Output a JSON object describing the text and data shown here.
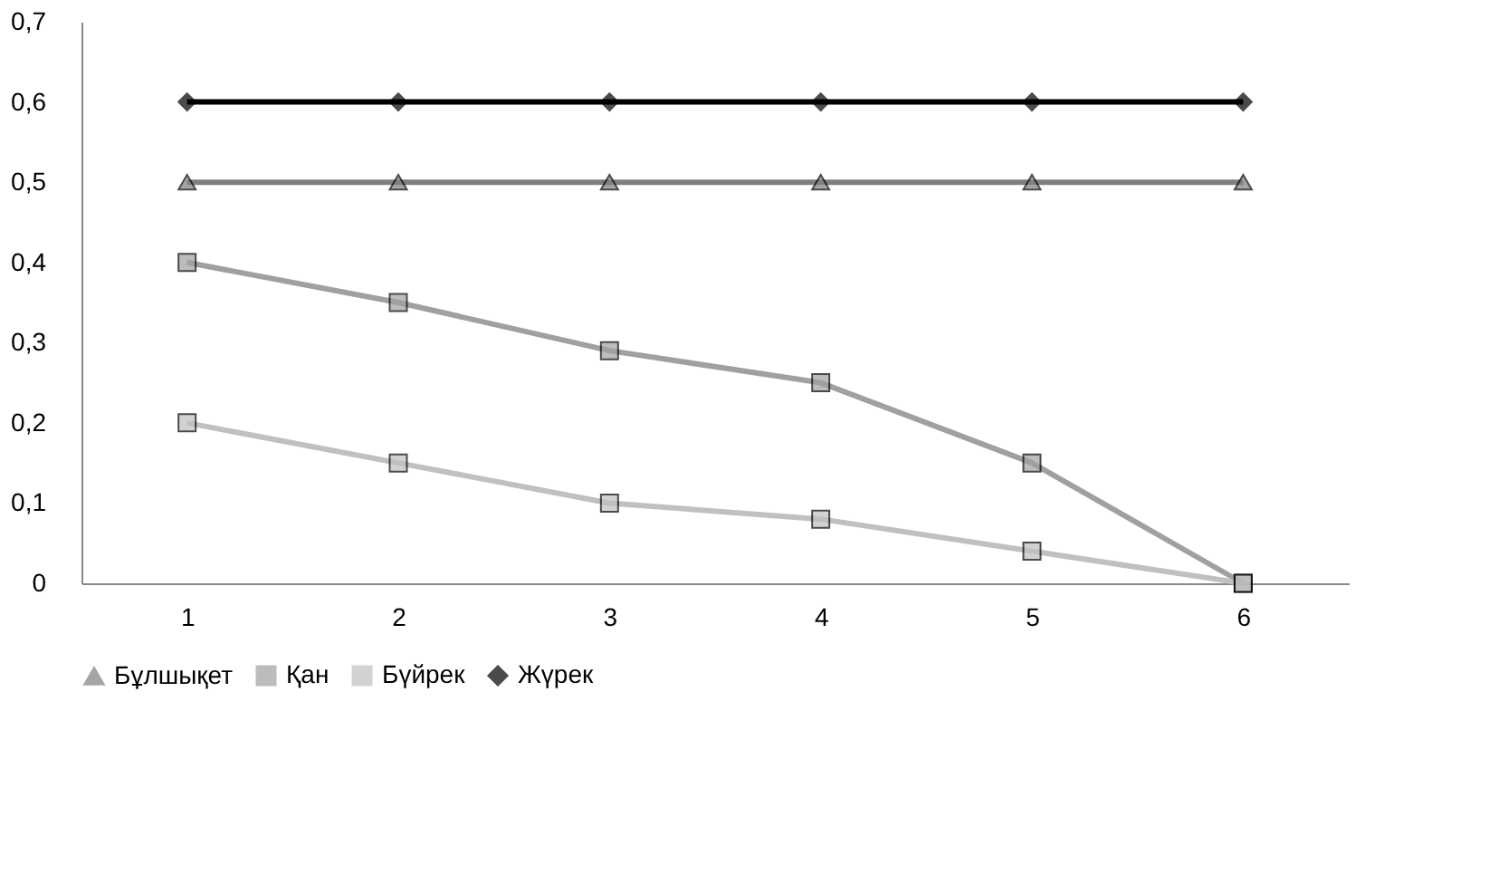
{
  "chart_data": {
    "type": "line",
    "categories": [
      "1",
      "2",
      "3",
      "4",
      "5",
      "6"
    ],
    "series": [
      {
        "name": "Бұлшықет",
        "color": "#808080",
        "marker": "triangle",
        "values": [
          0.5,
          0.5,
          0.5,
          0.5,
          0.5,
          0.5
        ]
      },
      {
        "name": "Қан",
        "color": "#a0a0a0",
        "marker": "square",
        "values": [
          0.4,
          0.35,
          0.29,
          0.25,
          0.15,
          0
        ]
      },
      {
        "name": "Бүйрек",
        "color": "#c0c0c0",
        "marker": "square",
        "values": [
          0.2,
          0.15,
          0.1,
          0.08,
          0.04,
          0
        ]
      },
      {
        "name": "Жүрек",
        "color": "#000000",
        "marker": "diamond",
        "values": [
          0.6,
          0.6,
          0.6,
          0.6,
          0.6,
          0.6
        ]
      }
    ],
    "ylim": [
      0,
      0.7
    ],
    "yticks": [
      0,
      {
        "value": 0.1,
        "label": "0,1"
      },
      {
        "value": 0.2,
        "label": "0,2"
      },
      {
        "value": 0.3,
        "label": "0,3"
      },
      {
        "value": 0.4,
        "label": "0,4"
      },
      {
        "value": 0.5,
        "label": "0,5"
      },
      {
        "value": 0.6,
        "label": "0,6"
      },
      {
        "value": 0.7,
        "label": "0,7"
      }
    ],
    "grid": false,
    "legend": "bottom",
    "line_style": "solid"
  }
}
